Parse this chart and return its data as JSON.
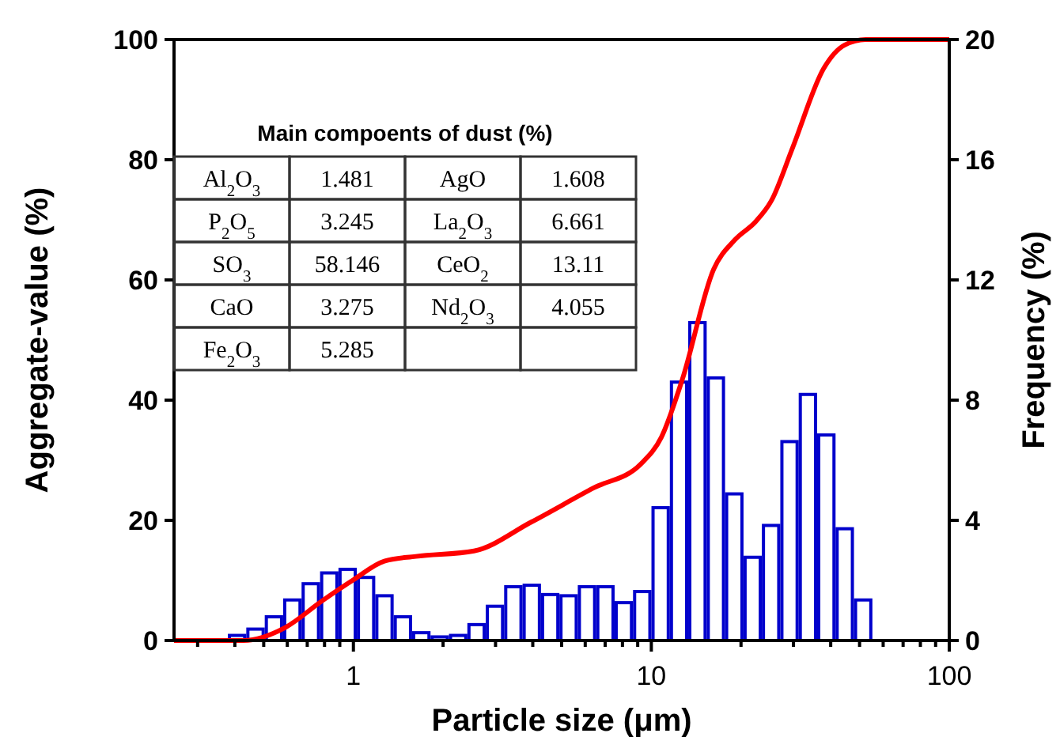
{
  "chart_data": {
    "type": "line",
    "xlabel": "Particle size (μm)",
    "ylabel": "Aggregate-value (%)",
    "y2label": "Frequency (%)",
    "log": "x",
    "xlim": [
      0.25,
      100
    ],
    "xticks": [
      {
        "value": 0.3,
        "label": null
      },
      {
        "value": 0.4,
        "label": null
      },
      {
        "value": 0.5,
        "label": null
      },
      {
        "value": 0.6,
        "label": null
      },
      {
        "value": 0.7,
        "label": null
      },
      {
        "value": 0.8,
        "label": null
      },
      {
        "value": 0.9,
        "label": null
      },
      1,
      {
        "value": 2,
        "label": null
      },
      {
        "value": 3,
        "label": null
      },
      {
        "value": 4,
        "label": null
      },
      {
        "value": 5,
        "label": null
      },
      {
        "value": 6,
        "label": null
      },
      {
        "value": 7,
        "label": null
      },
      {
        "value": 8,
        "label": null
      },
      {
        "value": 9,
        "label": null
      },
      10,
      {
        "value": 20,
        "label": null
      },
      {
        "value": 30,
        "label": null
      },
      {
        "value": 40,
        "label": null
      },
      {
        "value": 50,
        "label": null
      },
      {
        "value": 60,
        "label": null
      },
      {
        "value": 70,
        "label": null
      },
      {
        "value": 80,
        "label": null
      },
      {
        "value": 90,
        "label": null
      },
      100
    ],
    "ylim": [
      0,
      100
    ],
    "yticks": [
      0,
      20,
      40,
      60,
      80,
      100
    ],
    "y2lim": [
      0,
      20
    ],
    "y2ticks": [
      0,
      4,
      8,
      12,
      16,
      20
    ],
    "grid": false,
    "series": [
      {
        "type": "line",
        "color": "#ff0000",
        "x": [
          0.25,
          0.428,
          0.592,
          0.785,
          1.0,
          1.27,
          1.62,
          2.54,
          3.95,
          6.41,
          9.23,
          10.8,
          12.7,
          16.2,
          19.1,
          22.4,
          25.3,
          29.8,
          37.9,
          44.6,
          52.4,
          100
        ],
        "values": [
          0,
          0,
          2.2,
          6.6,
          10.1,
          13.2,
          14.0,
          14.9,
          19.7,
          25.4,
          29.4,
          33.8,
          43.4,
          61.8,
          66.7,
          69.7,
          73.2,
          82.0,
          95.2,
          99.1,
          100,
          100
        ]
      },
      {
        "type": "histogram",
        "axis": "y2",
        "color": "#0000cc",
        "bins": [
          0.379,
          0.437,
          0.504,
          0.581,
          0.67,
          0.773,
          0.891,
          1.027,
          1.184,
          1.365,
          1.574,
          1.815,
          2.093,
          2.413,
          2.782,
          3.206,
          3.697,
          4.262,
          4.914,
          5.665,
          6.531,
          7.53,
          8.682,
          10.01,
          11.54,
          13.3,
          15.34,
          17.68,
          20.39,
          23.5,
          27.1,
          31.24,
          36.02,
          41.53,
          47.88,
          55.21
        ],
        "values": [
          0.17,
          0.38,
          0.79,
          1.35,
          1.89,
          2.25,
          2.37,
          2.1,
          1.49,
          0.79,
          0.26,
          0.12,
          0.17,
          0.53,
          1.14,
          1.79,
          1.84,
          1.53,
          1.49,
          1.79,
          1.79,
          1.26,
          1.63,
          4.42,
          8.6,
          10.58,
          8.74,
          4.88,
          2.77,
          3.83,
          6.62,
          8.19,
          6.84,
          3.72,
          1.35
        ]
      }
    ],
    "annotations": [
      "Main compoents of dust (%)",
      "Al$_{2}$O$_{3}$",
      "1.481",
      "AgO",
      "1.608",
      "P$_{2}$O$_{5}$",
      "3.245",
      "La$_{2}$O$_{3}$",
      "6.661",
      "SO$_{3}$",
      "58.146",
      "CeO$_{2}$",
      "13.11",
      "CaO",
      "3.275",
      "Nd$_{2}$O$_{3}$",
      "4.055",
      "Fe$_{2}$O$_{3}$",
      "5.285"
    ]
  }
}
